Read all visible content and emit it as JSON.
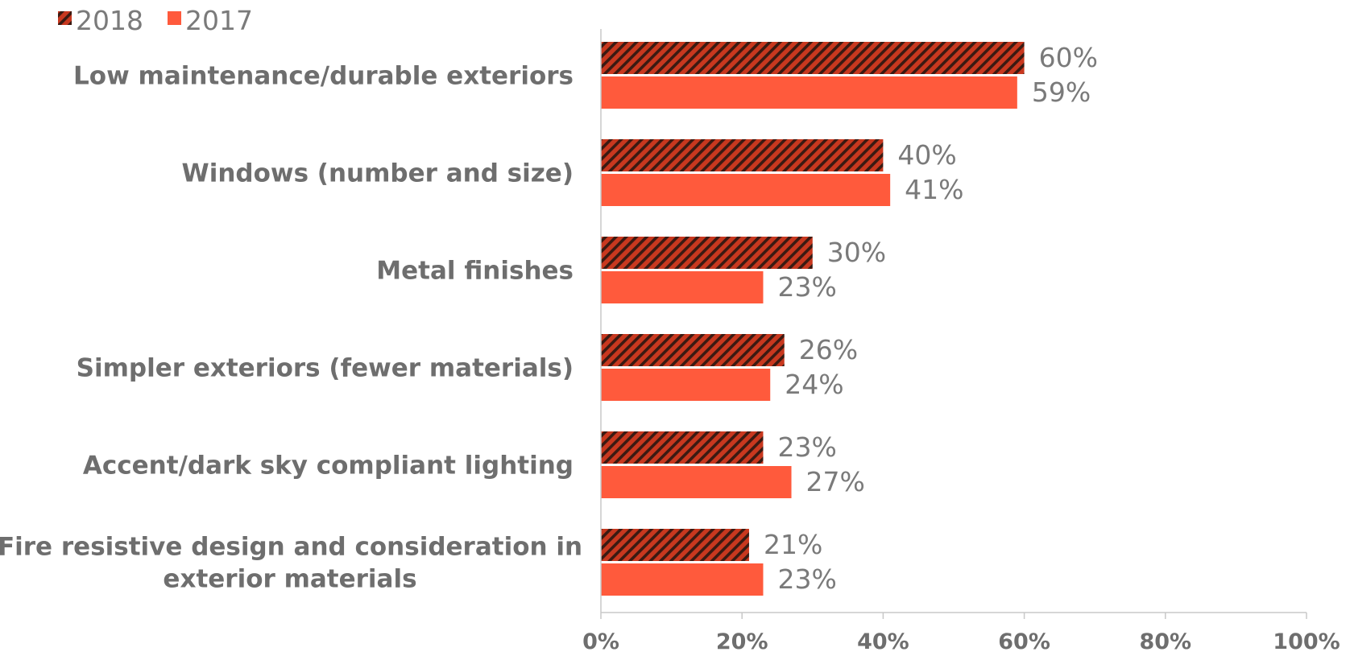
{
  "chart_data": {
    "type": "bar",
    "orientation": "horizontal",
    "categories": [
      "Low maintenance/durable exteriors",
      "Windows (number and size)",
      "Metal finishes",
      "Simpler exteriors (fewer materials)",
      "Accent/dark sky compliant lighting",
      "Fire resistive design and consideration in exterior materials"
    ],
    "category_lines": [
      [
        "Low maintenance/durable exteriors"
      ],
      [
        "Windows (number and size)"
      ],
      [
        "Metal finishes"
      ],
      [
        "Simpler exteriors (fewer materials)"
      ],
      [
        "Accent/dark sky compliant lighting"
      ],
      [
        "Fire resistive design and consideration in",
        "exterior materials"
      ]
    ],
    "series": [
      {
        "name": "2018",
        "values": [
          60,
          40,
          30,
          26,
          23,
          21
        ],
        "labels": [
          "60%",
          "40%",
          "30%",
          "26%",
          "23%",
          "21%"
        ],
        "color": "#c8381f",
        "stripe_color": "#3a1a12",
        "pattern": "hatched"
      },
      {
        "name": "2017",
        "values": [
          59,
          41,
          23,
          24,
          27,
          23
        ],
        "labels": [
          "59%",
          "41%",
          "23%",
          "24%",
          "27%",
          "23%"
        ],
        "color": "#ff5a3c",
        "pattern": "solid"
      }
    ],
    "xlim": [
      0,
      100
    ],
    "xticks": [
      0,
      20,
      40,
      60,
      80,
      100
    ],
    "xtick_labels": [
      "0%",
      "20%",
      "40%",
      "60%",
      "80%",
      "100%"
    ],
    "title": "",
    "xlabel": "",
    "ylabel": "",
    "grid": false,
    "legend_position": "top-left",
    "axis_color": "#c8c8c8"
  }
}
